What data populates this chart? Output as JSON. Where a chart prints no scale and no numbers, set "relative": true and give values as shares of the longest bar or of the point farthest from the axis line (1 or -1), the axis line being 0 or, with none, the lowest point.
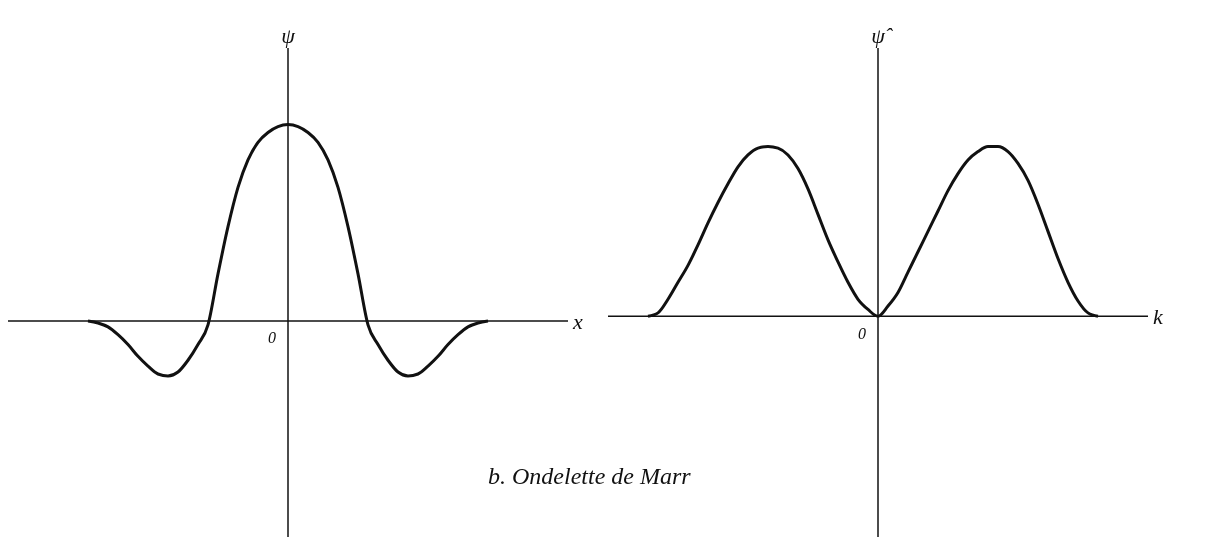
{
  "chart_data": [
    {
      "type": "line",
      "relative": true,
      "xlabel": "x",
      "ylabel": "ψ",
      "annotations": [
        "0",
        "b. Ondelette de Marr"
      ],
      "categories": [
        null,
        null,
        null,
        null,
        null,
        null,
        null,
        null,
        null,
        null,
        null,
        null,
        null,
        null,
        null,
        null,
        null,
        null,
        null,
        null,
        null,
        null,
        null,
        null,
        null,
        null,
        null,
        null,
        null,
        null,
        null,
        null,
        null,
        null,
        null,
        null,
        null,
        null,
        null,
        null,
        null,
        null,
        null,
        null,
        null,
        null,
        null,
        null,
        null,
        null,
        null,
        null,
        null,
        null,
        null,
        null,
        null
      ],
      "series": [
        {
          "color": "#111111",
          "values": [
            null,
            null,
            null,
            null,
            null,
            null,
            null,
            null,
            0,
            -0.01,
            -0.03,
            -0.07,
            -0.12,
            -0.18,
            -0.23,
            -0.27,
            -0.28,
            -0.26,
            -0.2,
            -0.12,
            -0.02,
            0.24,
            0.48,
            0.68,
            0.82,
            0.91,
            0.96,
            0.99,
            1,
            0.99,
            0.96,
            0.91,
            0.82,
            0.68,
            0.48,
            0.24,
            -0.02,
            -0.12,
            -0.2,
            -0.26,
            -0.28,
            -0.27,
            -0.23,
            -0.18,
            -0.12,
            -0.07,
            -0.03,
            -0.01,
            0,
            null,
            null,
            null,
            null,
            null,
            null,
            null,
            null
          ]
        }
      ],
      "grid": false,
      "legend": false,
      "marker": "none",
      "line_style": "solid"
    },
    {
      "type": "line",
      "relative": true,
      "xlabel": "k",
      "ylabel": "ψ̂",
      "annotations": [
        "0"
      ],
      "categories": [
        null,
        null,
        null,
        null,
        null,
        null,
        null,
        null,
        null,
        null,
        null,
        null,
        null,
        null,
        null,
        null,
        null,
        null,
        null,
        null,
        null,
        null,
        null,
        null,
        null,
        null,
        null,
        null,
        null,
        null,
        null,
        null,
        null,
        null,
        null,
        null,
        null,
        null,
        null,
        null,
        null,
        null,
        null,
        null,
        null,
        null,
        null,
        null,
        null,
        null,
        null,
        null,
        null,
        null,
        null
      ],
      "series": [
        {
          "color": "#111111",
          "values": [
            null,
            null,
            null,
            null,
            0,
            0.02,
            0.1,
            0.2,
            0.3,
            0.42,
            0.55,
            0.67,
            0.78,
            0.88,
            0.95,
            0.99,
            1,
            0.99,
            0.95,
            0.87,
            0.75,
            0.6,
            0.45,
            0.32,
            0.2,
            0.1,
            0.04,
            0,
            0.06,
            0.14,
            0.26,
            0.38,
            0.5,
            0.62,
            0.74,
            0.84,
            0.92,
            0.97,
            1,
            1,
            0.97,
            0.9,
            0.8,
            0.66,
            0.5,
            0.34,
            0.2,
            0.09,
            0.02,
            0,
            null,
            null,
            null,
            null,
            null
          ]
        }
      ],
      "grid": false,
      "legend": false,
      "marker": "none",
      "line_style": "solid"
    }
  ]
}
